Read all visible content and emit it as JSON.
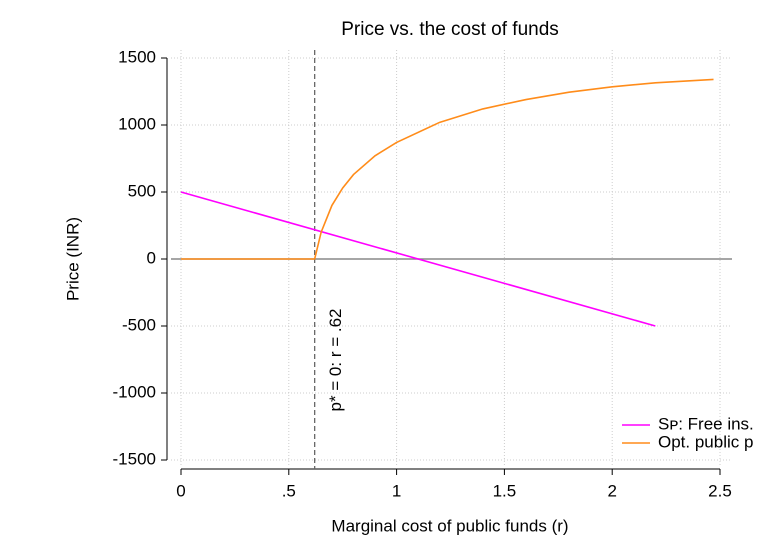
{
  "chart_data": {
    "type": "line",
    "title": "Price vs. the cost of funds",
    "x_label": "Marginal cost of public funds (r)",
    "y_label": "Price (INR)",
    "xlim": [
      0,
      2.5
    ],
    "ylim": [
      -1500,
      1500
    ],
    "xticks": [
      0,
      {
        "value": 0.5,
        "label": ".5"
      },
      1,
      1.5,
      2,
      2.5
    ],
    "yticks": [
      1500,
      1000,
      500,
      0,
      -500,
      -1000,
      -1500
    ],
    "grid": true,
    "legend": "lower right",
    "vline": 0.62,
    "annotation": "p* = 0: r = .62",
    "series": [
      {
        "name": "Sᴘ: Free ins.",
        "color": "#ff00ff",
        "x": [
          0,
          2.2
        ],
        "values": [
          500,
          -500
        ]
      },
      {
        "name": "Opt. public p",
        "color": "#ff8c1a",
        "x": [
          0,
          0.62,
          0.65,
          0.7,
          0.75,
          0.8,
          0.9,
          1.0,
          1.2,
          1.4,
          1.6,
          1.8,
          2.0,
          2.2,
          2.47
        ],
        "values": [
          0,
          0,
          200,
          400,
          530,
          630,
          770,
          870,
          1020,
          1120,
          1190,
          1245,
          1285,
          1315,
          1340
        ]
      }
    ]
  }
}
